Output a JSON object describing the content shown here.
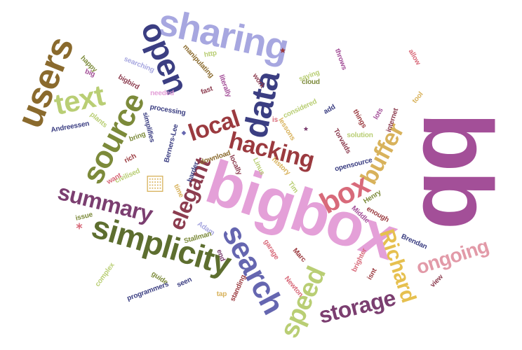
{
  "colors": {
    "purple": "#a34f98",
    "pink": "#e4a0d8",
    "lavender": "#a7a7e0",
    "navy": "#3b3e82",
    "blue": "#6566b0",
    "olive": "#7c8a3a",
    "darkolive": "#5d6e2f",
    "lightgreen": "#b9ce74",
    "brown": "#8a6a2d",
    "tan": "#d8b25b",
    "red": "#b4464f",
    "rose": "#d86a7a",
    "maroon": "#8c3c4f",
    "darkred": "#9b3a3f",
    "plum": "#7b3e70",
    "pinkred": "#e29aa8",
    "gold": "#e6c04f"
  },
  "words": [
    {
      "text": "bb",
      "color": "purple"
    },
    {
      "text": "bigbox",
      "color": "pink"
    },
    {
      "text": "sharing",
      "color": "lavender"
    },
    {
      "text": "open",
      "color": "navy"
    },
    {
      "text": "users",
      "color": "brown"
    },
    {
      "text": "text",
      "color": "lightgreen"
    },
    {
      "text": "source",
      "color": "olive"
    },
    {
      "text": "data",
      "color": "navy"
    },
    {
      "text": "local",
      "color": "darkred"
    },
    {
      "text": "hacking",
      "color": "darkred"
    },
    {
      "text": "buffer",
      "color": "tan"
    },
    {
      "text": "box",
      "color": "rose"
    },
    {
      "text": "summary",
      "color": "plum"
    },
    {
      "text": "simplicity",
      "color": "darkolive"
    },
    {
      "text": "elegant",
      "color": "maroon"
    },
    {
      "text": "search",
      "color": "blue"
    },
    {
      "text": "speed",
      "color": "lightgreen"
    },
    {
      "text": "storage",
      "color": "plum"
    },
    {
      "text": "Richard",
      "color": "gold"
    },
    {
      "text": "ongoing",
      "color": "pinkred"
    },
    {
      "text": "happy",
      "color": "olive"
    },
    {
      "text": "big",
      "color": "purple"
    },
    {
      "text": "searching",
      "color": "lavender"
    },
    {
      "text": "bigbird",
      "color": "maroon"
    },
    {
      "text": "needed",
      "color": "pink"
    },
    {
      "text": "fast",
      "color": "maroon"
    },
    {
      "text": "literally",
      "color": "purple"
    },
    {
      "text": "work",
      "color": "maroon"
    },
    {
      "text": "saying",
      "color": "lightgreen"
    },
    {
      "text": "cloud",
      "color": "olive"
    },
    {
      "text": "throws",
      "color": "purple"
    },
    {
      "text": "allow",
      "color": "rose"
    },
    {
      "text": "manipulating",
      "color": "brown"
    },
    {
      "text": "http",
      "color": "lightgreen"
    },
    {
      "text": "processing",
      "color": "navy"
    },
    {
      "text": "considered",
      "color": "lightgreen"
    },
    {
      "text": "add",
      "color": "navy"
    },
    {
      "text": "things",
      "color": "darkred"
    },
    {
      "text": "lots",
      "color": "purple"
    },
    {
      "text": "tool",
      "color": "tan"
    },
    {
      "text": "internet",
      "color": "maroon"
    },
    {
      "text": "Andreessen",
      "color": "navy"
    },
    {
      "text": "plants",
      "color": "lightgreen"
    },
    {
      "text": "simplifies",
      "color": "navy"
    },
    {
      "text": "lessons",
      "color": "tan"
    },
    {
      "text": "Torvalds",
      "color": "maroon"
    },
    {
      "text": "solution",
      "color": "lightgreen"
    },
    {
      "text": "bring",
      "color": "olive"
    },
    {
      "text": "Berners-Lee",
      "color": "navy"
    },
    {
      "text": "is",
      "color": "rose"
    },
    {
      "text": "download",
      "color": "brown"
    },
    {
      "text": "opensource",
      "color": "navy"
    },
    {
      "text": "rich",
      "color": "darkred"
    },
    {
      "text": "civilised",
      "color": "lightgreen"
    },
    {
      "text": "locally",
      "color": "maroon"
    },
    {
      "text": "Linus",
      "color": "lightgreen"
    },
    {
      "text": "history",
      "color": "tan"
    },
    {
      "text": "want",
      "color": "rose"
    },
    {
      "text": "harder",
      "color": "navy"
    },
    {
      "text": "time",
      "color": "tan"
    },
    {
      "text": "Tim",
      "color": "lightgreen"
    },
    {
      "text": "Henry",
      "color": "olive"
    },
    {
      "text": "enough",
      "color": "darkred"
    },
    {
      "text": "issue",
      "color": "olive"
    },
    {
      "text": "Adam",
      "color": "lavender"
    },
    {
      "text": "Middle",
      "color": "purple"
    },
    {
      "text": "Stallman",
      "color": "olive"
    },
    {
      "text": "Brendan",
      "color": "navy"
    },
    {
      "text": "Marc",
      "color": "darkred"
    },
    {
      "text": "garage",
      "color": "rose"
    },
    {
      "text": "end",
      "color": "plum"
    },
    {
      "text": "complex",
      "color": "lightgreen"
    },
    {
      "text": "guide",
      "color": "olive"
    },
    {
      "text": "seen",
      "color": "navy"
    },
    {
      "text": "brighter",
      "color": "rose"
    },
    {
      "text": "isnt",
      "color": "darkred"
    },
    {
      "text": "Newton",
      "color": "rose"
    },
    {
      "text": "programmers",
      "color": "navy"
    },
    {
      "text": "tap",
      "color": "tan"
    },
    {
      "text": "standing",
      "color": "darkred"
    },
    {
      "text": "view",
      "color": "maroon"
    }
  ],
  "icons": [
    {
      "name": "calculator-icon",
      "color": "#d8b25b"
    },
    {
      "name": "asterisk-icon",
      "color": "#d86a7a"
    },
    {
      "name": "star-icon",
      "color": "#9b3a3f"
    },
    {
      "name": "diamond-icon",
      "color": "#6566b0"
    },
    {
      "name": "small-star-icon",
      "color": "#7b3e70"
    }
  ]
}
